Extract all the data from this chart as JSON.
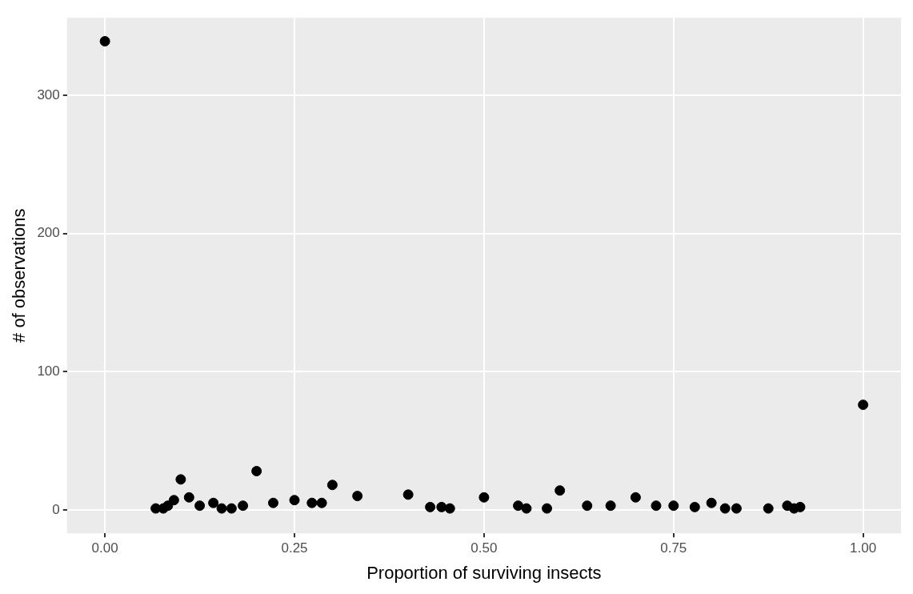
{
  "chart_data": {
    "type": "scatter",
    "xlabel": "Proportion of surviving insects",
    "ylabel": "# of observations",
    "x": [
      0,
      0.067,
      0.077,
      0.083,
      0.091,
      0.1,
      0.111,
      0.125,
      0.143,
      0.154,
      0.167,
      0.182,
      0.2,
      0.222,
      0.25,
      0.273,
      0.286,
      0.3,
      0.333,
      0.4,
      0.429,
      0.444,
      0.455,
      0.5,
      0.545,
      0.556,
      0.583,
      0.6,
      0.636,
      0.667,
      0.7,
      0.727,
      0.75,
      0.778,
      0.8,
      0.818,
      0.833,
      0.875,
      0.9,
      0.909,
      0.917,
      1
    ],
    "series": [
      {
        "color": "#000000",
        "values": [
          339,
          1,
          1,
          3,
          7,
          22,
          9,
          3,
          5,
          1,
          1,
          3,
          28,
          5,
          7,
          5,
          5,
          18,
          10,
          11,
          2,
          2,
          1,
          9,
          3,
          1,
          1,
          14,
          3,
          3,
          9,
          3,
          3,
          2,
          5,
          1,
          1,
          1,
          3,
          1,
          2,
          76
        ]
      }
    ],
    "xlim": [
      -0.05,
      1.05
    ],
    "xticks": [
      {
        "value": 0,
        "label": "0.00"
      },
      {
        "value": 0.25,
        "label": "0.25"
      },
      {
        "value": 0.5,
        "label": "0.50"
      },
      {
        "value": 0.75,
        "label": "0.75"
      },
      {
        "value": 1,
        "label": "1.00"
      }
    ],
    "ylim": [
      -17,
      356
    ],
    "yticks": [
      0,
      100,
      200,
      300
    ],
    "grid": true,
    "marker": "circle",
    "legend": false
  }
}
